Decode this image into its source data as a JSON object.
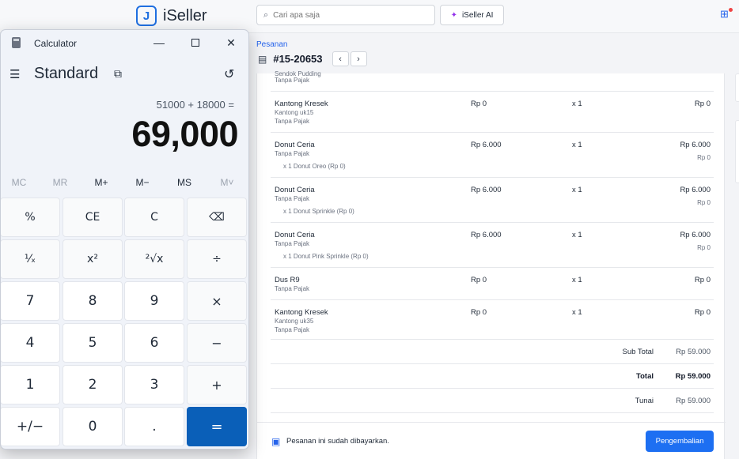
{
  "app": {
    "brand": "iSeller",
    "search_placeholder": "Cari apa saja",
    "ai_label": "iSeller AI",
    "breadcrumb": "Pesanan",
    "order_number": "#15-20653"
  },
  "order": {
    "partial_top_text": "Sendok Pudding",
    "partial_top_tax": "Tanpa Pajak",
    "items": [
      {
        "name": "Kantong Kresek",
        "sub": "Kantong uk15",
        "tax": "Tanpa Pajak",
        "price": "Rp 0",
        "qty": "x 1",
        "total": "Rp 0"
      },
      {
        "name": "Donut Ceria",
        "tax": "Tanpa Pajak",
        "modifier": "x 1 Donut Oreo (Rp 0)",
        "price": "Rp 6.000",
        "qty": "x 1",
        "total": "Rp 6.000",
        "total_sub": "Rp 0"
      },
      {
        "name": "Donut Ceria",
        "tax": "Tanpa Pajak",
        "modifier": "x 1 Donut Sprinkle (Rp 0)",
        "price": "Rp 6.000",
        "qty": "x 1",
        "total": "Rp 6.000",
        "total_sub": "Rp 0"
      },
      {
        "name": "Donut Ceria",
        "tax": "Tanpa Pajak",
        "modifier": "x 1 Donut Pink Sprinkle (Rp 0)",
        "price": "Rp 6.000",
        "qty": "x 1",
        "total": "Rp 6.000",
        "total_sub": "Rp 0"
      },
      {
        "name": "Dus R9",
        "tax": "Tanpa Pajak",
        "price": "Rp 0",
        "qty": "x 1",
        "total": "Rp 0"
      },
      {
        "name": "Kantong Kresek",
        "sub": "Kantong uk35",
        "tax": "Tanpa Pajak",
        "price": "Rp 0",
        "qty": "x 1",
        "total": "Rp 0"
      }
    ],
    "summary": [
      {
        "label": "Sub Total",
        "value": "Rp 59.000"
      },
      {
        "label": "Total",
        "value": "Rp 59.000"
      },
      {
        "label": "Tunai",
        "value": "Rp 59.000"
      }
    ],
    "paid_status": "Pesanan ini sudah dibayarkan.",
    "refund_label": "Pengembalian"
  },
  "calculator": {
    "title": "Calculator",
    "mode": "Standard",
    "expression": "51000 + 18000 =",
    "result": "69,000",
    "memory": [
      "MC",
      "MR",
      "M+",
      "M−",
      "MS",
      "M˅"
    ],
    "keys": [
      [
        "%",
        "CE",
        "C",
        "⌫"
      ],
      [
        "¹⁄ₓ",
        "x²",
        "²√x",
        "÷"
      ],
      [
        "7",
        "8",
        "9",
        "×"
      ],
      [
        "4",
        "5",
        "6",
        "−"
      ],
      [
        "1",
        "2",
        "3",
        "+"
      ],
      [
        "+/−",
        "0",
        ".",
        "="
      ]
    ]
  }
}
